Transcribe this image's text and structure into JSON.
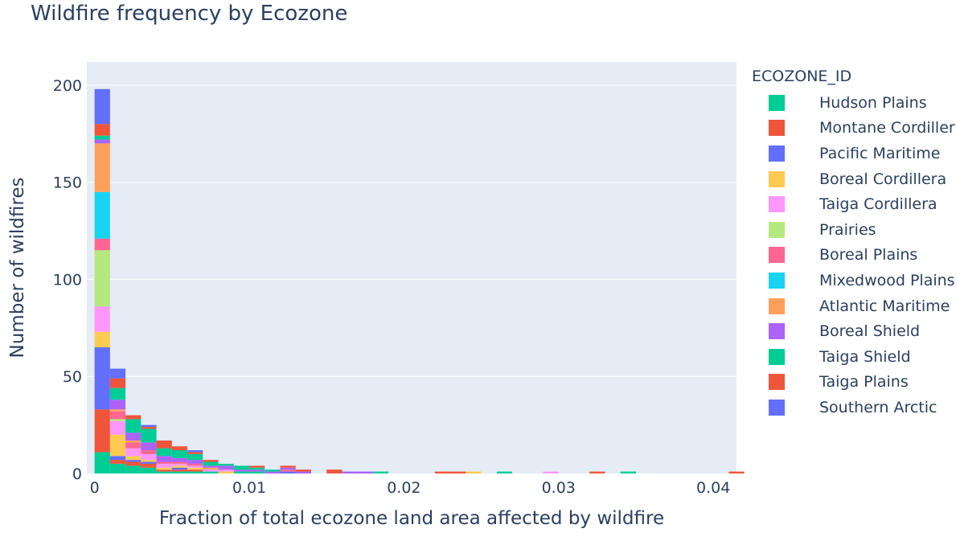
{
  "chart_data": {
    "type": "bar",
    "stacked": true,
    "title": "Wildfire frequency by Ecozone",
    "xlabel": "Fraction of total ecozone land area affected by wildfire",
    "ylabel": "Number of wildfires",
    "xlim": [
      -0.0005,
      0.0415
    ],
    "ylim": [
      0,
      212
    ],
    "bin_width": 0.001,
    "x_ticks": [
      0,
      0.01,
      0.02,
      0.03,
      0.04
    ],
    "x_tick_labels": [
      "0",
      "0.01",
      "0.02",
      "0.03",
      "0.04"
    ],
    "y_ticks": [
      0,
      50,
      100,
      150,
      200
    ],
    "y_tick_labels": [
      "0",
      "50",
      "100",
      "150",
      "200"
    ],
    "grid": true,
    "legend_title": "ECOZONE_ID",
    "legend_position": "right",
    "bins": [
      0,
      0.001,
      0.002,
      0.003,
      0.004,
      0.005,
      0.006,
      0.007,
      0.008,
      0.009,
      0.01,
      0.011,
      0.012,
      0.013,
      0.015,
      0.016,
      0.017,
      0.018,
      0.022,
      0.023,
      0.024,
      0.026,
      0.029,
      0.032,
      0.034,
      0.041
    ],
    "series": [
      {
        "name": "Hudson Plains",
        "color": "#00cc96",
        "values": [
          11,
          5,
          4,
          3,
          1,
          1,
          1,
          1,
          0,
          1,
          1,
          0,
          0,
          0,
          0,
          0,
          0,
          0,
          0,
          0,
          0,
          0,
          0,
          0,
          0,
          0
        ]
      },
      {
        "name": "Montane Cordillera",
        "color": "#ef553b",
        "values": [
          22,
          2,
          2,
          2,
          1,
          1,
          1,
          0,
          0,
          0,
          0,
          0,
          0,
          0,
          0,
          0,
          0,
          0,
          0,
          0,
          0,
          0,
          0,
          0,
          0,
          0
        ]
      },
      {
        "name": "Pacific Maritime",
        "color": "#636efa",
        "values": [
          32,
          2,
          1,
          1,
          0,
          1,
          0,
          0,
          0,
          0,
          0,
          0,
          1,
          0,
          0,
          0,
          0,
          0,
          0,
          0,
          0,
          0,
          0,
          0,
          0,
          0
        ]
      },
      {
        "name": "Boreal Cordillera",
        "color": "#fecb52",
        "values": [
          8,
          11,
          2,
          1,
          1,
          1,
          1,
          0,
          1,
          0,
          0,
          0,
          0,
          0,
          0,
          0,
          0,
          0,
          0,
          0,
          1,
          0,
          0,
          0,
          0,
          0
        ]
      },
      {
        "name": "Taiga Cordillera",
        "color": "#ff97ff",
        "values": [
          13,
          7,
          4,
          3,
          2,
          1,
          1,
          1,
          1,
          0,
          0,
          0,
          0,
          0,
          0,
          0,
          0,
          0,
          0,
          0,
          0,
          0,
          1,
          0,
          0,
          0
        ]
      },
      {
        "name": "Prairies",
        "color": "#b6e880",
        "values": [
          29,
          1,
          0,
          0,
          0,
          0,
          0,
          0,
          0,
          0,
          0,
          0,
          0,
          0,
          0,
          0,
          0,
          0,
          0,
          0,
          0,
          0,
          0,
          0,
          0,
          0
        ]
      },
      {
        "name": "Boreal Plains",
        "color": "#ff6692",
        "values": [
          6,
          4,
          3,
          2,
          1,
          1,
          1,
          0,
          0,
          0,
          0,
          0,
          1,
          0,
          0,
          0,
          0,
          0,
          0,
          0,
          0,
          0,
          0,
          0,
          0,
          0
        ]
      },
      {
        "name": "Mixedwood Plains",
        "color": "#19d3f3",
        "values": [
          24,
          0,
          0,
          0,
          0,
          0,
          0,
          0,
          0,
          0,
          0,
          0,
          0,
          0,
          0,
          0,
          0,
          0,
          0,
          0,
          0,
          0,
          0,
          0,
          0,
          0
        ]
      },
      {
        "name": "Atlantic Maritime",
        "color": "#ffa15a",
        "values": [
          25,
          1,
          1,
          0,
          0,
          0,
          0,
          1,
          0,
          0,
          0,
          0,
          0,
          0,
          0,
          0,
          0,
          0,
          0,
          0,
          0,
          0,
          0,
          0,
          0,
          0
        ]
      },
      {
        "name": "Boreal Shield",
        "color": "#ab63fa",
        "values": [
          2,
          5,
          4,
          4,
          3,
          2,
          2,
          1,
          2,
          1,
          1,
          1,
          1,
          1,
          0,
          1,
          1,
          0,
          0,
          0,
          0,
          0,
          0,
          0,
          0,
          0
        ]
      },
      {
        "name": "Taiga Shield",
        "color": "#00cc96",
        "values": [
          2,
          6,
          7,
          7,
          4,
          4,
          3,
          2,
          1,
          2,
          1,
          1,
          0,
          0,
          0,
          0,
          0,
          1,
          0,
          0,
          0,
          1,
          0,
          0,
          1,
          0
        ]
      },
      {
        "name": "Taiga Plains",
        "color": "#ef553b",
        "values": [
          6,
          5,
          2,
          1,
          4,
          2,
          1,
          1,
          0,
          0,
          1,
          0,
          1,
          1,
          2,
          0,
          0,
          0,
          1,
          1,
          0,
          0,
          0,
          1,
          0,
          1
        ]
      },
      {
        "name": "Southern Arctic",
        "color": "#636efa",
        "values": [
          18,
          5,
          0,
          1,
          0,
          0,
          1,
          0,
          0,
          0,
          0,
          0,
          0,
          0,
          0,
          0,
          0,
          0,
          0,
          0,
          0,
          0,
          0,
          0,
          0,
          0
        ]
      }
    ]
  }
}
